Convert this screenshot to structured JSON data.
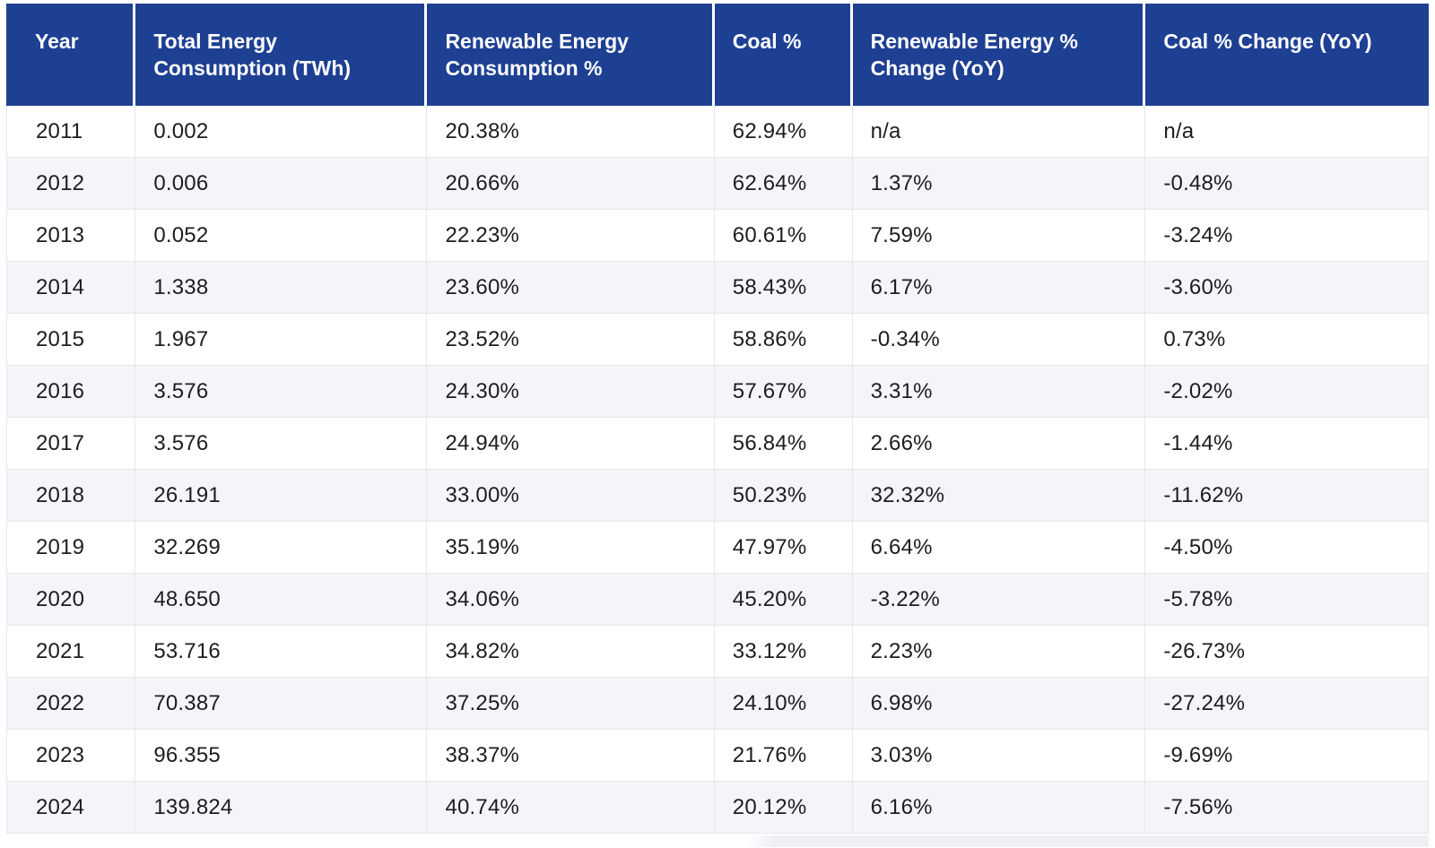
{
  "chart_data": {
    "type": "table",
    "columns": [
      "Year",
      "Total Energy Consumption (TWh)",
      "Renewable Energy Consumption %",
      "Coal %",
      "Renewable Energy % Change (YoY)",
      "Coal % Change (YoY)"
    ],
    "rows": [
      [
        "2011",
        "0.002",
        "20.38%",
        "62.94%",
        "n/a",
        "n/a"
      ],
      [
        "2012",
        "0.006",
        "20.66%",
        "62.64%",
        "1.37%",
        "-0.48%"
      ],
      [
        "2013",
        "0.052",
        "22.23%",
        "60.61%",
        "7.59%",
        "-3.24%"
      ],
      [
        "2014",
        "1.338",
        "23.60%",
        "58.43%",
        "6.17%",
        "-3.60%"
      ],
      [
        "2015",
        "1.967",
        "23.52%",
        "58.86%",
        "-0.34%",
        "0.73%"
      ],
      [
        "2016",
        "3.576",
        "24.30%",
        "57.67%",
        "3.31%",
        "-2.02%"
      ],
      [
        "2017",
        "3.576",
        "24.94%",
        "56.84%",
        "2.66%",
        "-1.44%"
      ],
      [
        "2018",
        "26.191",
        "33.00%",
        "50.23%",
        "32.32%",
        "-11.62%"
      ],
      [
        "2019",
        "32.269",
        "35.19%",
        "47.97%",
        "6.64%",
        "-4.50%"
      ],
      [
        "2020",
        "48.650",
        "34.06%",
        "45.20%",
        "-3.22%",
        "-5.78%"
      ],
      [
        "2021",
        "53.716",
        "34.82%",
        "33.12%",
        "2.23%",
        "-26.73%"
      ],
      [
        "2022",
        "70.387",
        "37.25%",
        "24.10%",
        "6.98%",
        "-27.24%"
      ],
      [
        "2023",
        "96.355",
        "38.37%",
        "21.76%",
        "3.03%",
        "-9.69%"
      ],
      [
        "2024",
        "139.824",
        "40.74%",
        "20.12%",
        "6.16%",
        "-7.56%"
      ]
    ]
  },
  "colors": {
    "header_bg": "#1E4093",
    "header_text": "#FFFFFF",
    "row_bg": "#FFFFFF",
    "row_alt_bg": "#F4F5F8",
    "border": "#E5E7EC",
    "cell_text": "#1B1D21"
  }
}
